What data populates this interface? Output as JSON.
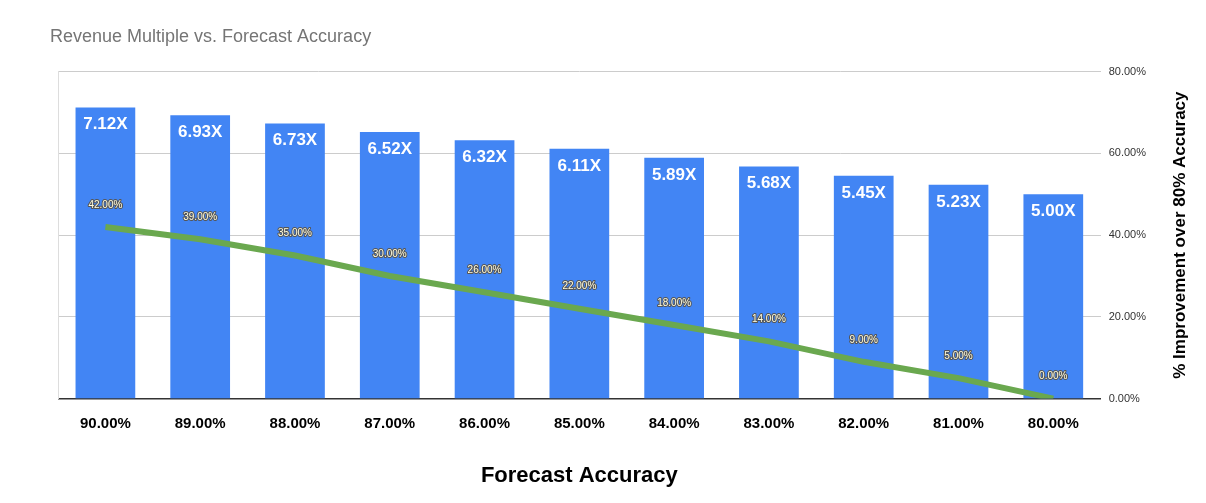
{
  "chart_data": {
    "type": "bar",
    "title": "Revenue Multiple vs. Forecast Accuracy",
    "x_label": "Forecast Accuracy",
    "y2_label": "% Improvement over 80% Accuracy",
    "categories": [
      "90.00%",
      "89.00%",
      "88.00%",
      "87.00%",
      "86.00%",
      "85.00%",
      "84.00%",
      "83.00%",
      "82.00%",
      "81.00%",
      "80.00%"
    ],
    "series": [
      {
        "type": "bar",
        "color": "#4285f4",
        "values": [
          7.12,
          6.93,
          6.73,
          6.52,
          6.32,
          6.11,
          5.89,
          5.68,
          5.45,
          5.23,
          5.0
        ],
        "value_labels": [
          "7.12X",
          "6.93X",
          "6.73X",
          "6.52X",
          "6.32X",
          "6.11X",
          "5.89X",
          "5.68X",
          "5.45X",
          "5.23X",
          "5.00X"
        ]
      },
      {
        "type": "line",
        "axis": "y2",
        "color": "#6aa84f",
        "values": [
          42,
          39,
          35,
          30,
          26,
          22,
          18,
          14,
          9,
          5,
          0
        ],
        "value_labels": [
          "42.00%",
          "39.00%",
          "35.00%",
          "30.00%",
          "26.00%",
          "22.00%",
          "18.00%",
          "14.00%",
          "9.00%",
          "5.00%",
          "0.00%"
        ]
      }
    ],
    "ylim": [
      0,
      8
    ],
    "y2lim": [
      0,
      80
    ],
    "y2ticks": [
      {
        "value": 0,
        "label": "0.00%"
      },
      {
        "value": 20,
        "label": "20.00%"
      },
      {
        "value": 40,
        "label": "40.00%"
      },
      {
        "value": 60,
        "label": "60.00%"
      },
      {
        "value": 80,
        "label": "80.00%"
      }
    ],
    "grid": true,
    "data_labels": true
  }
}
